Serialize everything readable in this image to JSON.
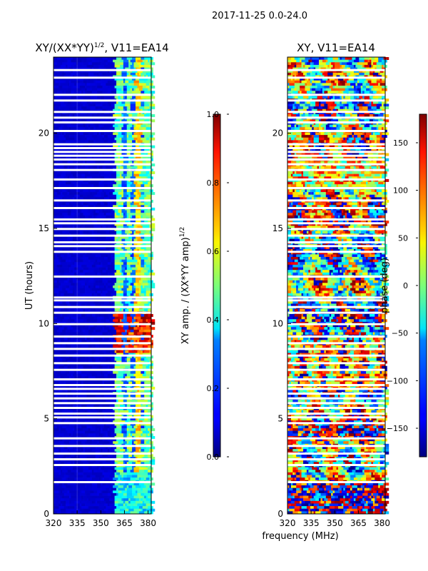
{
  "figure": {
    "suptitle": "2017-11-25 0.0-24.0",
    "shared_xlabel": "frequency (MHz)"
  },
  "chart_data": [
    {
      "type": "heatmap",
      "title_main": "XY/(XX*YY)",
      "title_exp": "1/2",
      "title_suffix": ", V11=EA14",
      "ylabel": "UT (hours)",
      "xlim": [
        320,
        382
      ],
      "ylim": [
        0,
        24
      ],
      "xticks": [
        "320",
        "335",
        "350",
        "365",
        "380"
      ],
      "xtick_values": [
        320,
        335,
        350,
        365,
        380
      ],
      "yticks": [
        "0",
        "5",
        "10",
        "15",
        "20"
      ],
      "ytick_values": [
        0,
        5,
        10,
        15,
        20
      ],
      "colormap": "jet",
      "colorbar": {
        "label_main": "XY amp. / (XX*YY amp)",
        "label_exp": "1/2",
        "range": [
          0.0,
          1.0
        ],
        "ticks": [
          "0.0",
          "0.2",
          "0.4",
          "0.6",
          "0.8",
          "1.0"
        ],
        "tick_values": [
          0.0,
          0.2,
          0.4,
          0.6,
          0.8,
          1.0
        ]
      },
      "blank_rows_ut": [
        1.65,
        2.55,
        2.85,
        3.15,
        3.55,
        3.95,
        4.75,
        5.05,
        5.25,
        5.55,
        5.8,
        6.05,
        6.3,
        6.55,
        6.75,
        7.05,
        7.55,
        7.9,
        8.3,
        8.65,
        8.95,
        9.3,
        9.95,
        10.55,
        10.85,
        11.2,
        11.35,
        12.45,
        13.75,
        14.05,
        14.25,
        14.6,
        14.95,
        15.25,
        15.45,
        16.05,
        16.45,
        17.1,
        17.55,
        18.05,
        18.35,
        18.6,
        18.8,
        19.0,
        19.2,
        19.4,
        20.1,
        20.55,
        20.8,
        21.1,
        21.7,
        22.0,
        22.9,
        23.3
      ]
    },
    {
      "type": "heatmap",
      "title": "XY, V11=EA14",
      "ylabel": "",
      "xlim": [
        320,
        382
      ],
      "ylim": [
        0,
        24
      ],
      "xticks": [
        "320",
        "335",
        "350",
        "365",
        "380"
      ],
      "xtick_values": [
        320,
        335,
        350,
        365,
        380
      ],
      "yticks": [
        "0",
        "5",
        "10",
        "15",
        "20"
      ],
      "ytick_values": [
        0,
        5,
        10,
        15,
        20
      ],
      "colormap": "jet",
      "colorbar": {
        "label": "phase (deg)",
        "range": [
          -180,
          180
        ],
        "ticks": [
          "−150",
          "−100",
          "−50",
          "0",
          "50",
          "100",
          "150"
        ],
        "tick_values": [
          -150,
          -100,
          -50,
          0,
          50,
          100,
          150
        ]
      },
      "blank_rows_ut": [
        1.65,
        2.55,
        2.85,
        3.15,
        3.55,
        3.95,
        4.75,
        5.05,
        5.25,
        5.55,
        5.8,
        6.05,
        6.3,
        6.55,
        6.75,
        7.05,
        7.55,
        7.9,
        8.3,
        8.65,
        8.95,
        9.3,
        9.95,
        10.55,
        10.85,
        11.2,
        11.35,
        12.45,
        13.75,
        14.05,
        14.25,
        14.6,
        14.95,
        15.25,
        15.45,
        16.05,
        16.45,
        17.1,
        17.55,
        18.05,
        18.35,
        18.6,
        18.8,
        19.0,
        19.2,
        19.4,
        20.1,
        20.55,
        20.8,
        21.1,
        21.7,
        22.0,
        22.9,
        23.3
      ]
    }
  ]
}
